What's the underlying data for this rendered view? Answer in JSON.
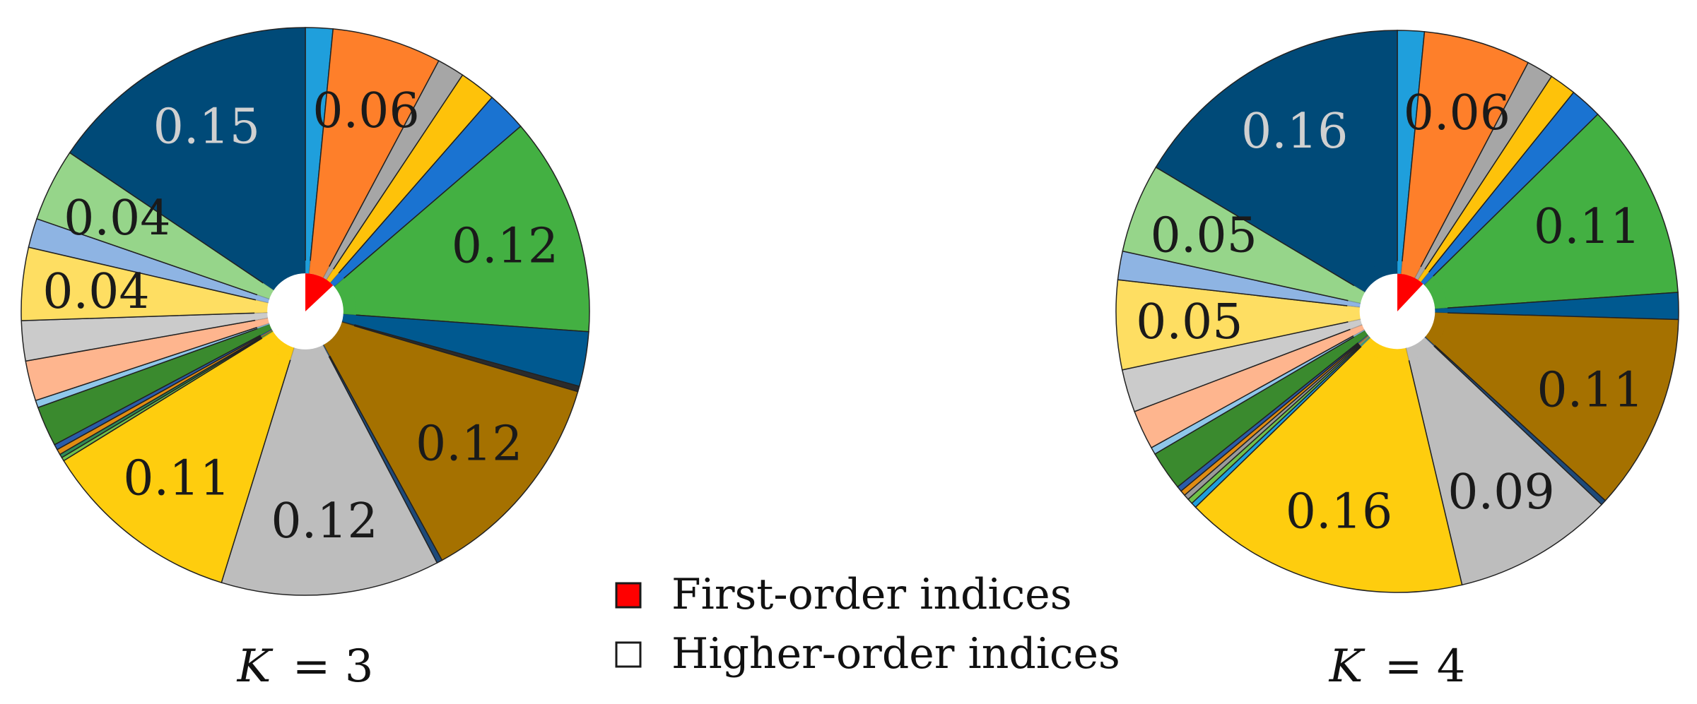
{
  "colors": {
    "first_order": "#ff0000",
    "higher_order": "#ffffff",
    "outline": "#222222"
  },
  "legend": {
    "placement": "bottom-center",
    "items": [
      {
        "label": "First-order indices",
        "swatch_color": "#ff0000"
      },
      {
        "label": "Higher-order indices",
        "swatch_color": "#ffffff"
      }
    ]
  },
  "chart_data": [
    {
      "type": "pie",
      "title": "",
      "caption_var": "K",
      "caption_value": "= 3",
      "first_order_fraction": 0.13,
      "slices": [
        {
          "value": 0.015,
          "color": "#1f9fdc",
          "label": ""
        },
        {
          "value": 0.06,
          "color": "#fe7f2a",
          "label": "0.06",
          "label_color": "#1a1a1a"
        },
        {
          "value": 0.015,
          "color": "#a6a6a6",
          "label": ""
        },
        {
          "value": 0.02,
          "color": "#fec20a",
          "label": ""
        },
        {
          "value": 0.022,
          "color": "#1a73d1",
          "label": ""
        },
        {
          "value": 0.12,
          "color": "#43b042",
          "label": "0.12",
          "label_color": "#1a1a1a"
        },
        {
          "value": 0.03,
          "color": "#005990",
          "label": ""
        },
        {
          "value": 0.003,
          "color": "#2b2b2b",
          "label": ""
        },
        {
          "value": 0.12,
          "color": "#a57100",
          "label": "0.12",
          "label_color": "#1a1a1a"
        },
        {
          "value": 0.003,
          "color": "#1e4a7a",
          "label": ""
        },
        {
          "value": 0.12,
          "color": "#bdbdbd",
          "label": "0.12",
          "label_color": "#1a1a1a"
        },
        {
          "value": 0.11,
          "color": "#fecd0e",
          "label": "0.11",
          "label_color": "#1a1a1a"
        },
        {
          "value": 0.002,
          "color": "#6fc04a",
          "label": ""
        },
        {
          "value": 0.002,
          "color": "#2e8b57",
          "label": ""
        },
        {
          "value": 0.003,
          "color": "#e08c12",
          "label": ""
        },
        {
          "value": 0.003,
          "color": "#2a5caa",
          "label": ""
        },
        {
          "value": 0.022,
          "color": "#3a8a2e",
          "label": ""
        },
        {
          "value": 0.004,
          "color": "#8fc7ea",
          "label": ""
        },
        {
          "value": 0.022,
          "color": "#feb58e",
          "label": ""
        },
        {
          "value": 0.022,
          "color": "#cbcbcb",
          "label": ""
        },
        {
          "value": 0.04,
          "color": "#fede62",
          "label": "0.04",
          "label_color": "#1a1a1a"
        },
        {
          "value": 0.016,
          "color": "#8eb4e3",
          "label": ""
        },
        {
          "value": 0.04,
          "color": "#96d58a",
          "label": "0.04",
          "label_color": "#1a1a1a"
        },
        {
          "value": 0.15,
          "color": "#004a78",
          "label": "0.15",
          "label_color": "#d0d0d0"
        }
      ]
    },
    {
      "type": "pie",
      "title": "",
      "caption_var": "K",
      "caption_value": "= 4",
      "first_order_fraction": 0.12,
      "slices": [
        {
          "value": 0.015,
          "color": "#1f9fdc",
          "label": ""
        },
        {
          "value": 0.06,
          "color": "#fe7f2a",
          "label": "0.06",
          "label_color": "#1a1a1a"
        },
        {
          "value": 0.015,
          "color": "#a6a6a6",
          "label": ""
        },
        {
          "value": 0.015,
          "color": "#fec20a",
          "label": ""
        },
        {
          "value": 0.018,
          "color": "#1a73d1",
          "label": ""
        },
        {
          "value": 0.11,
          "color": "#43b042",
          "label": "0.11",
          "label_color": "#1a1a1a"
        },
        {
          "value": 0.015,
          "color": "#005990",
          "label": ""
        },
        {
          "value": 0.11,
          "color": "#a57100",
          "label": "0.11",
          "label_color": "#1a1a1a"
        },
        {
          "value": 0.003,
          "color": "#1e4a7a",
          "label": ""
        },
        {
          "value": 0.09,
          "color": "#bdbdbd",
          "label": "0.09",
          "label_color": "#1a1a1a"
        },
        {
          "value": 0.16,
          "color": "#fecd0e",
          "label": "0.16",
          "label_color": "#1a1a1a"
        },
        {
          "value": 0.003,
          "color": "#1f9fdc",
          "label": ""
        },
        {
          "value": 0.003,
          "color": "#6fc04a",
          "label": ""
        },
        {
          "value": 0.003,
          "color": "#9a9a9a",
          "label": ""
        },
        {
          "value": 0.003,
          "color": "#e08c12",
          "label": ""
        },
        {
          "value": 0.003,
          "color": "#2a5caa",
          "label": ""
        },
        {
          "value": 0.022,
          "color": "#3a8a2e",
          "label": ""
        },
        {
          "value": 0.004,
          "color": "#8fc7ea",
          "label": ""
        },
        {
          "value": 0.022,
          "color": "#feb58e",
          "label": ""
        },
        {
          "value": 0.024,
          "color": "#cbcbcb",
          "label": ""
        },
        {
          "value": 0.05,
          "color": "#fede62",
          "label": "0.05",
          "label_color": "#1a1a1a"
        },
        {
          "value": 0.016,
          "color": "#8eb4e3",
          "label": ""
        },
        {
          "value": 0.05,
          "color": "#96d58a",
          "label": "0.05",
          "label_color": "#1a1a1a"
        },
        {
          "value": 0.16,
          "color": "#004a78",
          "label": "0.16",
          "label_color": "#d0d0d0"
        }
      ]
    }
  ]
}
